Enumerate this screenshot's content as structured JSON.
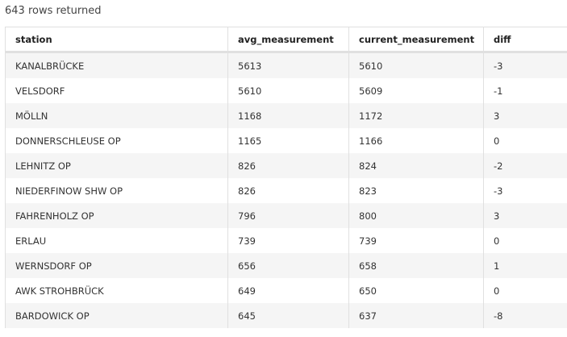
{
  "result_count": "643 rows returned",
  "columns": [
    "station",
    "avg_measurement",
    "current_measurement",
    "diff"
  ],
  "rows": [
    [
      "KANALBRÜCKE",
      "5613",
      "5610",
      "-3"
    ],
    [
      "VELSDORF",
      "5610",
      "5609",
      "-1"
    ],
    [
      "MÖLLN",
      "1168",
      "1172",
      "3"
    ],
    [
      "DONNERSCHLEUSE OP",
      "1165",
      "1166",
      "0"
    ],
    [
      "LEHNITZ OP",
      "826",
      "824",
      "-2"
    ],
    [
      "NIEDERFINOW SHW OP",
      "826",
      "823",
      "-3"
    ],
    [
      "FAHRENHOLZ OP",
      "796",
      "800",
      "3"
    ],
    [
      "ERLAU",
      "739",
      "739",
      "0"
    ],
    [
      "WERNSDORF OP",
      "656",
      "658",
      "1"
    ],
    [
      "AWK STROHBRÜCK",
      "649",
      "650",
      "0"
    ],
    [
      "BARDOWICK OP",
      "645",
      "637",
      "-8"
    ]
  ]
}
